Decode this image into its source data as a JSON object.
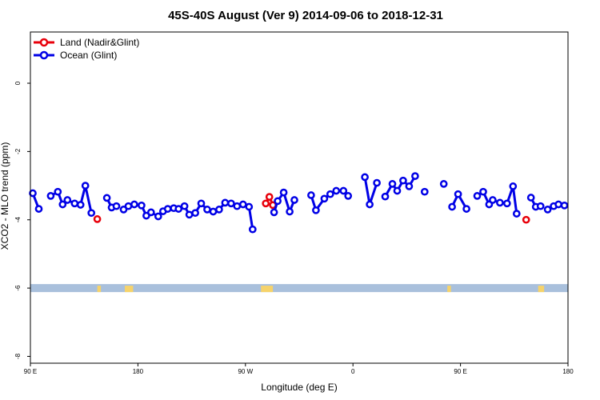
{
  "chart_data": {
    "type": "line",
    "title": "45S-40S August (Ver 9)   2014-09-06 to 2018-12-31",
    "xlabel": "Longitude (deg E)",
    "ylabel": "XCO2 - MLO trend (ppm)",
    "xlim": [
      90,
      540
    ],
    "ylim": [
      -8.2,
      1.5
    ],
    "x_ticks": [
      {
        "value": 90,
        "label": "90 E"
      },
      {
        "value": 180,
        "label": "180"
      },
      {
        "value": 270,
        "label": "90 W"
      },
      {
        "value": 360,
        "label": "0"
      },
      {
        "value": 450,
        "label": "90 E"
      },
      {
        "value": 540,
        "label": "180"
      }
    ],
    "y_ticks": [
      {
        "value": 0,
        "label": "0"
      },
      {
        "value": -2,
        "label": "-2"
      },
      {
        "value": -4,
        "label": "-4"
      },
      {
        "value": -6,
        "label": "-6"
      },
      {
        "value": -8,
        "label": "-8"
      }
    ],
    "grid": false,
    "legend_position": "top-left",
    "land_band": {
      "y_center": -6.0,
      "ocean_color": "#a9c0dc",
      "land_color": "#f6d36b",
      "land_segments": [
        [
          146,
          149
        ],
        [
          169,
          176
        ],
        [
          283,
          293
        ],
        [
          439,
          442
        ],
        [
          515,
          520
        ]
      ]
    },
    "series": [
      {
        "name": "Land (Nadir&Glint)",
        "color": "#e8000b",
        "segments": [
          [
            [
              146,
              -3.98
            ]
          ],
          [
            [
              287,
              -3.52
            ],
            [
              290,
              -3.33
            ],
            [
              293,
              -3.57
            ]
          ],
          [
            [
              505,
              -4.0
            ]
          ]
        ]
      },
      {
        "name": "Ocean (Glint)",
        "color": "#0000e6",
        "segments": [
          [
            [
              92,
              -3.22
            ],
            [
              97,
              -3.68
            ]
          ],
          [
            [
              107,
              -3.3
            ],
            [
              113,
              -3.18
            ],
            [
              117,
              -3.55
            ],
            [
              121,
              -3.42
            ],
            [
              127,
              -3.52
            ],
            [
              132,
              -3.56
            ],
            [
              136,
              -3.0
            ],
            [
              141,
              -3.8
            ]
          ],
          [
            [
              154,
              -3.36
            ],
            [
              158,
              -3.64
            ],
            [
              162,
              -3.6
            ]
          ],
          [
            [
              168,
              -3.7
            ],
            [
              172,
              -3.6
            ],
            [
              177,
              -3.55
            ],
            [
              183,
              -3.58
            ],
            [
              187,
              -3.88
            ],
            [
              191,
              -3.78
            ],
            [
              197,
              -3.9
            ],
            [
              201,
              -3.75
            ],
            [
              205,
              -3.68
            ],
            [
              210,
              -3.66
            ],
            [
              214,
              -3.68
            ],
            [
              219,
              -3.6
            ],
            [
              223,
              -3.85
            ],
            [
              228,
              -3.8
            ],
            [
              233,
              -3.52
            ],
            [
              238,
              -3.7
            ],
            [
              243,
              -3.76
            ],
            [
              248,
              -3.7
            ],
            [
              253,
              -3.5
            ],
            [
              258,
              -3.52
            ],
            [
              263,
              -3.6
            ],
            [
              268,
              -3.55
            ],
            [
              273,
              -3.62
            ],
            [
              276,
              -4.28
            ]
          ],
          [
            [
              294,
              -3.78
            ],
            [
              297,
              -3.45
            ],
            [
              302,
              -3.2
            ],
            [
              307,
              -3.76
            ],
            [
              311,
              -3.42
            ]
          ],
          [
            [
              325,
              -3.28
            ],
            [
              329,
              -3.72
            ],
            [
              336,
              -3.38
            ],
            [
              341,
              -3.25
            ],
            [
              346,
              -3.15
            ],
            [
              352,
              -3.15
            ],
            [
              356,
              -3.3
            ]
          ],
          [
            [
              370,
              -2.75
            ],
            [
              374,
              -3.55
            ],
            [
              380,
              -2.92
            ]
          ],
          [
            [
              387,
              -3.32
            ],
            [
              393,
              -2.95
            ],
            [
              397,
              -3.15
            ],
            [
              402,
              -2.85
            ],
            [
              407,
              -3.02
            ],
            [
              412,
              -2.72
            ]
          ],
          [
            [
              420,
              -3.18
            ]
          ],
          [
            [
              436,
              -2.95
            ]
          ],
          [
            [
              443,
              -3.62
            ],
            [
              448,
              -3.25
            ],
            [
              455,
              -3.68
            ]
          ],
          [
            [
              464,
              -3.3
            ],
            [
              469,
              -3.18
            ],
            [
              474,
              -3.55
            ],
            [
              477,
              -3.42
            ],
            [
              483,
              -3.5
            ],
            [
              489,
              -3.52
            ],
            [
              494,
              -3.02
            ],
            [
              497,
              -3.82
            ]
          ],
          [
            [
              509,
              -3.35
            ],
            [
              513,
              -3.62
            ],
            [
              517,
              -3.6
            ]
          ],
          [
            [
              523,
              -3.7
            ],
            [
              528,
              -3.6
            ],
            [
              532,
              -3.55
            ],
            [
              537,
              -3.58
            ]
          ]
        ]
      }
    ]
  }
}
